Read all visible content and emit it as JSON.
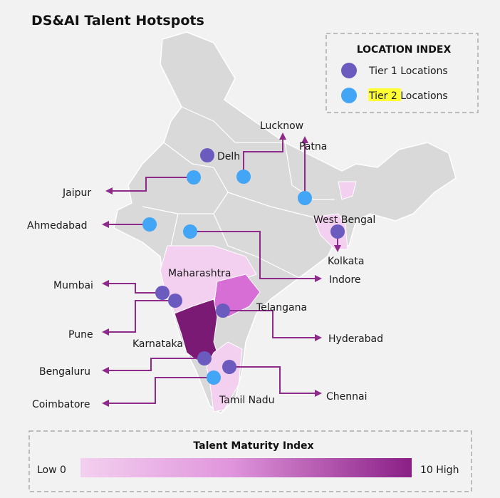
{
  "title": "DS&AI Talent Hotspots",
  "colors": {
    "tier1": "#6b5bbf",
    "tier2": "#42a5f5",
    "arrow": "#8e2a8a",
    "land": "#d9d9d9",
    "low": "#f3d0f0",
    "high": "#8a1f86",
    "highlight": "#ffff33"
  },
  "location_index": {
    "title": "LOCATION INDEX",
    "tier1": "Tier 1 Locations",
    "tier2_highlight": "Tier 2",
    "tier2_rest": " Locations"
  },
  "states": {
    "maharashtra": "Maharashtra",
    "telangana": "Telangana",
    "karnataka": "Karnataka",
    "tamil_nadu": "Tamil Nadu",
    "west_bengal": "West Bengal"
  },
  "cities": {
    "delhi": {
      "label": "Delh",
      "tier": 1
    },
    "lucknow": {
      "label": "Lucknow",
      "tier": 2
    },
    "patna": {
      "label": "Patna",
      "tier": 2
    },
    "jaipur": {
      "label": "Jaipur",
      "tier": 2
    },
    "ahmedabad": {
      "label": "Ahmedabad",
      "tier": 2
    },
    "indore": {
      "label": "Indore",
      "tier": 2
    },
    "kolkata": {
      "label": "Kolkata",
      "tier": 1
    },
    "mumbai": {
      "label": "Mumbai",
      "tier": 1
    },
    "pune": {
      "label": "Pune",
      "tier": 1
    },
    "hyderabad": {
      "label": "Hyderabad",
      "tier": 1
    },
    "bengaluru": {
      "label": "Bengaluru",
      "tier": 1
    },
    "coimbatore": {
      "label": "Coimbatore",
      "tier": 2
    },
    "chennai": {
      "label": "Chennai",
      "tier": 1
    }
  },
  "maturity_index": {
    "title": "Talent Maturity Index",
    "low": "Low 0",
    "high": "10 High",
    "min": 0,
    "max": 10
  }
}
